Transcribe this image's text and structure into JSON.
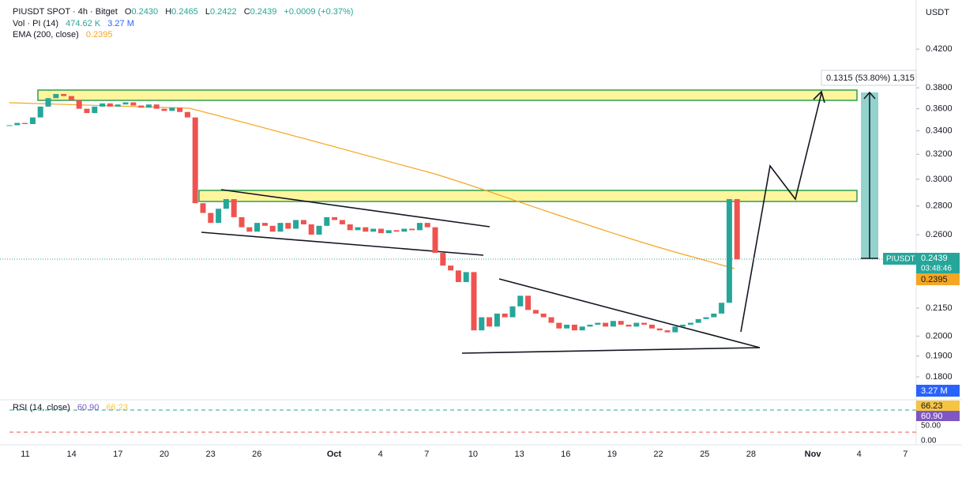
{
  "header": {
    "symbol": "PIUSDT SPOT · 4h · Bitget",
    "open_label": "O",
    "open": "0.2430",
    "high_label": "H",
    "high": "0.2465",
    "low_label": "L",
    "low": "0.2422",
    "close_label": "C",
    "close": "0.2439",
    "change": "+0.0009 (+0.37%)"
  },
  "indicators": {
    "volume": {
      "label": "Vol · PI (14)",
      "value1": "474.62 K",
      "value2": "3.27 M"
    },
    "ema": {
      "label": "EMA (200, close)",
      "value": "0.2395"
    },
    "rsi": {
      "label": "RSI (14, close)",
      "value1": "60.90",
      "value2": "66.23"
    }
  },
  "chart_data": {
    "type": "candlestick",
    "currency": "USDT",
    "closes": [
      0.345,
      0.347,
      0.346,
      0.352,
      0.362,
      0.37,
      0.374,
      0.372,
      0.368,
      0.36,
      0.356,
      0.362,
      0.365,
      0.362,
      0.364,
      0.366,
      0.363,
      0.361,
      0.364,
      0.36,
      0.358,
      0.361,
      0.357,
      0.352,
      0.282,
      0.275,
      0.268,
      0.278,
      0.285,
      0.272,
      0.265,
      0.262,
      0.268,
      0.266,
      0.262,
      0.268,
      0.264,
      0.27,
      0.267,
      0.26,
      0.266,
      0.272,
      0.27,
      0.267,
      0.263,
      0.265,
      0.262,
      0.264,
      0.261,
      0.263,
      0.262,
      0.264,
      0.263,
      0.268,
      0.265,
      0.248,
      0.24,
      0.237,
      0.23,
      0.236,
      0.203,
      0.21,
      0.205,
      0.212,
      0.21,
      0.216,
      0.222,
      0.214,
      0.212,
      0.21,
      0.207,
      0.204,
      0.206,
      0.203,
      0.205,
      0.206,
      0.207,
      0.205,
      0.208,
      0.206,
      0.205,
      0.207,
      0.206,
      0.204,
      0.203,
      0.202,
      0.205,
      0.206,
      0.207,
      0.209,
      0.21,
      0.212,
      0.218,
      0.285,
      0.2439
    ],
    "log_scale": true,
    "ylim": [
      0.17,
      0.472
    ],
    "yticks": [
      {
        "value": 0.42,
        "label": "0.4200"
      },
      {
        "value": 0.38,
        "label": "0.3800"
      },
      {
        "value": 0.36,
        "label": "0.3600"
      },
      {
        "value": 0.34,
        "label": "0.3400"
      },
      {
        "value": 0.32,
        "label": "0.3200"
      },
      {
        "value": 0.3,
        "label": "0.3000"
      },
      {
        "value": 0.28,
        "label": "0.2800"
      },
      {
        "value": 0.26,
        "label": "0.2600"
      },
      {
        "value": 0.215,
        "label": "0.2150"
      },
      {
        "value": 0.2,
        "label": "0.2000"
      },
      {
        "value": 0.19,
        "label": "0.1900"
      },
      {
        "value": 0.18,
        "label": "0.1800"
      }
    ],
    "x_labels": [
      "11",
      "14",
      "17",
      "20",
      "23",
      "26",
      "Oct",
      "4",
      "7",
      "10",
      "13",
      "16",
      "19",
      "22",
      "25",
      "28",
      "Nov",
      "4",
      "7"
    ],
    "last_price": {
      "symbol": "PIUSDT",
      "value": 0.2439,
      "countdown": "03:48:46"
    },
    "ema_value": 0.2395,
    "volume_badge": "3.27 M",
    "rsi_badges": [
      "66.23",
      "60.90"
    ],
    "rsi_ticks": [
      "50.00",
      "0.00"
    ],
    "measure": "0.1315 (53.80%) 1,315"
  }
}
